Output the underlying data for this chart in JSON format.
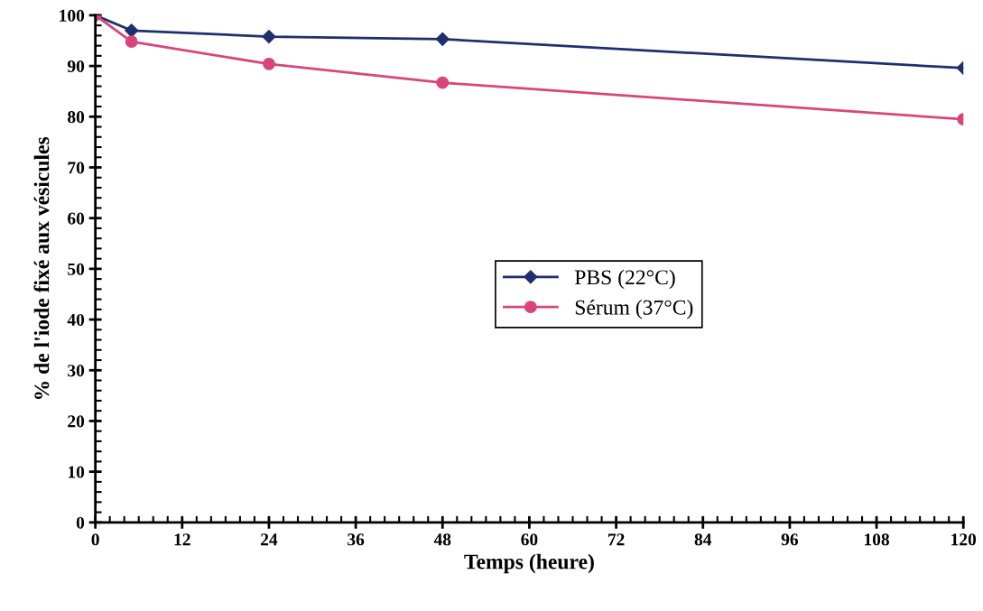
{
  "chart_data": {
    "type": "line",
    "xlabel": "Temps (heure)",
    "ylabel": "% de l'iode fixé aux vésicules",
    "xlim": [
      0,
      120
    ],
    "xticks": [
      0,
      12,
      24,
      36,
      48,
      60,
      72,
      84,
      96,
      108,
      120
    ],
    "ylim": [
      0,
      100
    ],
    "yticks": [
      0,
      10,
      20,
      30,
      40,
      50,
      60,
      70,
      80,
      90,
      100
    ],
    "grid": false,
    "legend": "center",
    "line_style": "solid",
    "series": [
      {
        "name": "PBS (22°C)",
        "color": "#1f2f6e",
        "marker": "diamond",
        "x": [
          0,
          5,
          24,
          48,
          120
        ],
        "values": [
          100,
          97,
          95.8,
          95.3,
          89.6
        ]
      },
      {
        "name": "Sérum (37°C)",
        "color": "#d9457a",
        "marker": "circle",
        "x": [
          0,
          5,
          24,
          48,
          120
        ],
        "values": [
          100,
          94.8,
          90.4,
          86.7,
          79.5
        ]
      }
    ]
  }
}
